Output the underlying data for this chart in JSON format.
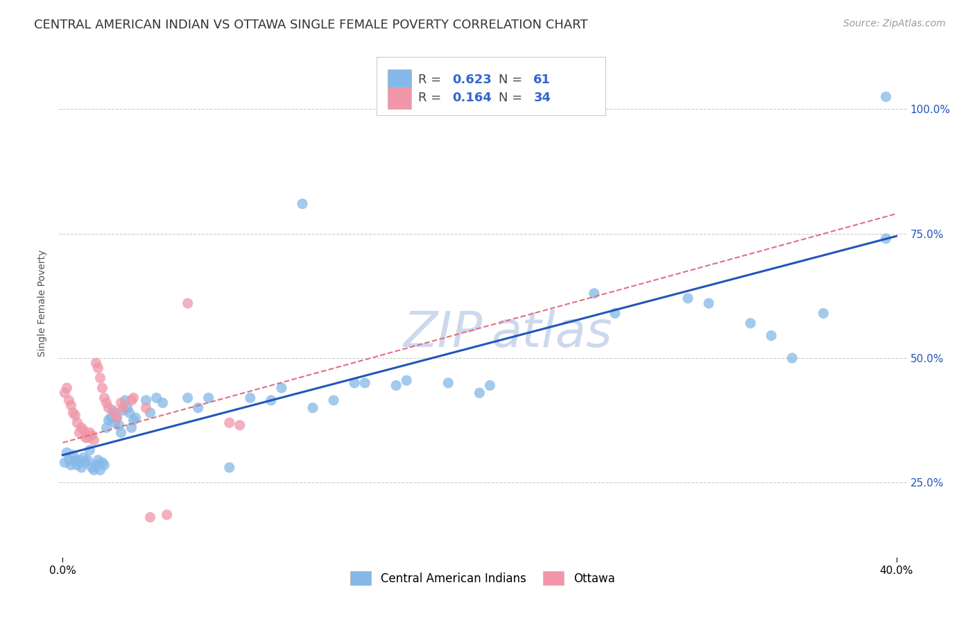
{
  "title": "CENTRAL AMERICAN INDIAN VS OTTAWA SINGLE FEMALE POVERTY CORRELATION CHART",
  "source": "Source: ZipAtlas.com",
  "ylabel": "Single Female Poverty",
  "y_ticks": [
    0.25,
    0.5,
    0.75,
    1.0
  ],
  "y_tick_labels": [
    "25.0%",
    "50.0%",
    "75.0%",
    "100.0%"
  ],
  "xlim": [
    -0.002,
    0.405
  ],
  "ylim": [
    0.1,
    1.12
  ],
  "legend_r_color": "#3366cc",
  "blue_scatter": [
    [
      0.001,
      0.29
    ],
    [
      0.002,
      0.31
    ],
    [
      0.003,
      0.295
    ],
    [
      0.004,
      0.285
    ],
    [
      0.005,
      0.305
    ],
    [
      0.006,
      0.295
    ],
    [
      0.007,
      0.285
    ],
    [
      0.008,
      0.295
    ],
    [
      0.009,
      0.28
    ],
    [
      0.01,
      0.3
    ],
    [
      0.011,
      0.29
    ],
    [
      0.012,
      0.295
    ],
    [
      0.013,
      0.315
    ],
    [
      0.014,
      0.28
    ],
    [
      0.015,
      0.275
    ],
    [
      0.016,
      0.285
    ],
    [
      0.017,
      0.295
    ],
    [
      0.018,
      0.275
    ],
    [
      0.019,
      0.29
    ],
    [
      0.02,
      0.285
    ],
    [
      0.021,
      0.36
    ],
    [
      0.022,
      0.375
    ],
    [
      0.023,
      0.38
    ],
    [
      0.024,
      0.395
    ],
    [
      0.025,
      0.37
    ],
    [
      0.026,
      0.38
    ],
    [
      0.027,
      0.365
    ],
    [
      0.028,
      0.35
    ],
    [
      0.029,
      0.395
    ],
    [
      0.03,
      0.415
    ],
    [
      0.031,
      0.4
    ],
    [
      0.032,
      0.39
    ],
    [
      0.033,
      0.36
    ],
    [
      0.034,
      0.375
    ],
    [
      0.035,
      0.38
    ],
    [
      0.04,
      0.415
    ],
    [
      0.042,
      0.39
    ],
    [
      0.045,
      0.42
    ],
    [
      0.048,
      0.41
    ],
    [
      0.06,
      0.42
    ],
    [
      0.065,
      0.4
    ],
    [
      0.07,
      0.42
    ],
    [
      0.08,
      0.28
    ],
    [
      0.09,
      0.42
    ],
    [
      0.1,
      0.415
    ],
    [
      0.105,
      0.44
    ],
    [
      0.115,
      0.81
    ],
    [
      0.12,
      0.4
    ],
    [
      0.13,
      0.415
    ],
    [
      0.14,
      0.45
    ],
    [
      0.145,
      0.45
    ],
    [
      0.16,
      0.445
    ],
    [
      0.165,
      0.455
    ],
    [
      0.185,
      0.45
    ],
    [
      0.2,
      0.43
    ],
    [
      0.205,
      0.445
    ],
    [
      0.255,
      0.63
    ],
    [
      0.265,
      0.59
    ],
    [
      0.3,
      0.62
    ],
    [
      0.31,
      0.61
    ],
    [
      0.33,
      0.57
    ],
    [
      0.34,
      0.545
    ],
    [
      0.35,
      0.5
    ],
    [
      0.365,
      0.59
    ],
    [
      0.395,
      1.025
    ],
    [
      0.395,
      0.74
    ]
  ],
  "pink_scatter": [
    [
      0.001,
      0.43
    ],
    [
      0.002,
      0.44
    ],
    [
      0.003,
      0.415
    ],
    [
      0.004,
      0.405
    ],
    [
      0.005,
      0.39
    ],
    [
      0.006,
      0.385
    ],
    [
      0.007,
      0.37
    ],
    [
      0.008,
      0.35
    ],
    [
      0.009,
      0.36
    ],
    [
      0.01,
      0.355
    ],
    [
      0.011,
      0.34
    ],
    [
      0.012,
      0.34
    ],
    [
      0.013,
      0.35
    ],
    [
      0.014,
      0.345
    ],
    [
      0.015,
      0.335
    ],
    [
      0.016,
      0.49
    ],
    [
      0.017,
      0.48
    ],
    [
      0.018,
      0.46
    ],
    [
      0.019,
      0.44
    ],
    [
      0.02,
      0.42
    ],
    [
      0.021,
      0.41
    ],
    [
      0.022,
      0.4
    ],
    [
      0.025,
      0.39
    ],
    [
      0.026,
      0.38
    ],
    [
      0.028,
      0.41
    ],
    [
      0.029,
      0.4
    ],
    [
      0.033,
      0.415
    ],
    [
      0.034,
      0.42
    ],
    [
      0.04,
      0.4
    ],
    [
      0.042,
      0.18
    ],
    [
      0.05,
      0.185
    ],
    [
      0.06,
      0.61
    ],
    [
      0.08,
      0.37
    ],
    [
      0.085,
      0.365
    ]
  ],
  "blue_line": {
    "x": [
      0.0,
      0.4
    ],
    "y": [
      0.305,
      0.745
    ]
  },
  "pink_line": {
    "x": [
      0.0,
      0.4
    ],
    "y": [
      0.33,
      0.79
    ]
  },
  "scatter_color_blue": "#85b8e8",
  "scatter_color_pink": "#f096a8",
  "line_color_blue": "#2255bb",
  "line_color_pink": "#e07080",
  "grid_color": "#cccccc",
  "bg_color": "#ffffff",
  "title_fontsize": 13,
  "source_fontsize": 10,
  "axis_label_fontsize": 10,
  "tick_fontsize": 11,
  "watermark_color": "#ccd8ee",
  "watermark_fontsize": 52,
  "legend_fontsize": 13
}
